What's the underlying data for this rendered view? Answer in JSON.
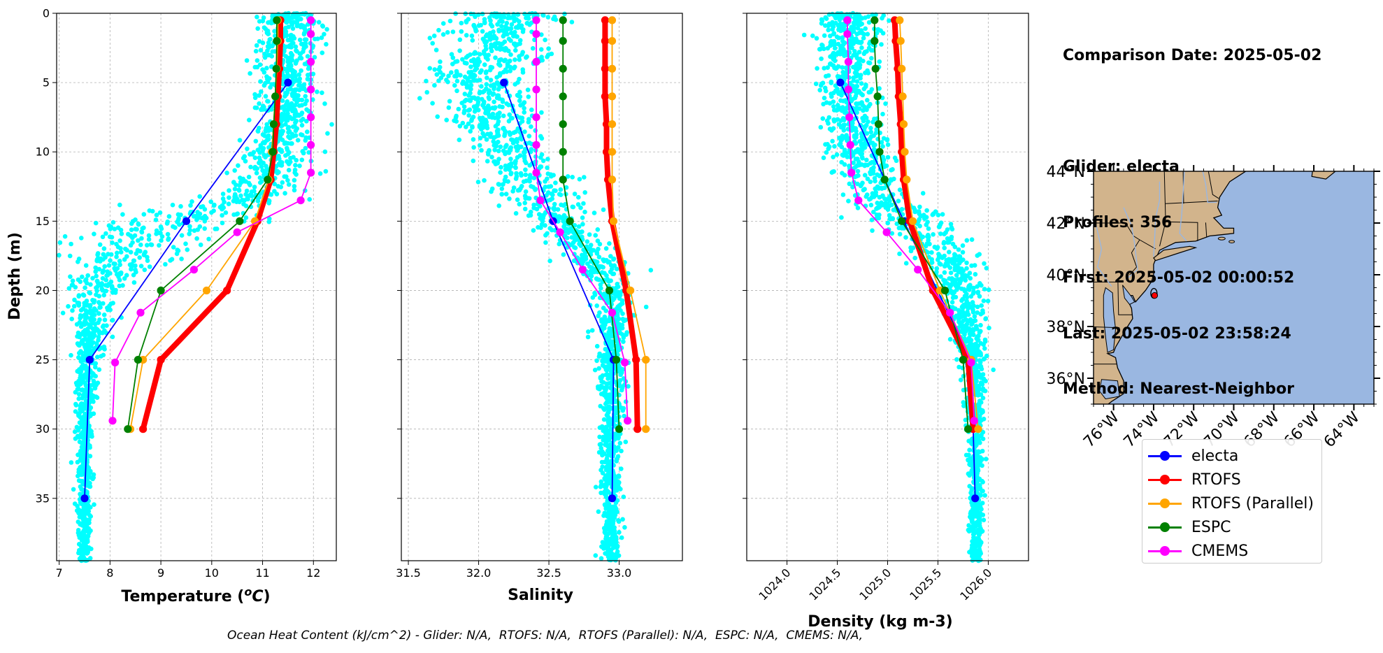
{
  "info": {
    "comparison_date": "Comparison Date: 2025-05-02",
    "glider": "Glider: electa",
    "profiles": "Profiles: 356",
    "first": "First: 2025-05-02 00:00:52",
    "last": "Last: 2025-05-02 23:58:24",
    "method": "Method: Nearest-Neighbor"
  },
  "footer": "Ocean Heat Content (kJ/cm^2) - Glider: N/A,  RTOFS: N/A,  RTOFS (Parallel): N/A,  ESPC: N/A,  CMEMS: N/A,",
  "legend": [
    {
      "label": "electa",
      "color": "#0000ff"
    },
    {
      "label": "RTOFS",
      "color": "#ff0000"
    },
    {
      "label": "RTOFS (Parallel)",
      "color": "#ffa500"
    },
    {
      "label": "ESPC",
      "color": "#008000"
    },
    {
      "label": "CMEMS",
      "color": "#ff00ff"
    }
  ],
  "chart_data": [
    {
      "type": "line",
      "title": "",
      "xlabel": "Temperature (°C)",
      "ylabel": "Depth (m)",
      "xlim": [
        6.95,
        12.45
      ],
      "ylim": [
        39.5,
        0
      ],
      "xticks": [
        7,
        8,
        9,
        10,
        11,
        12
      ],
      "yticks": [
        0,
        5,
        10,
        15,
        20,
        25,
        30,
        35
      ],
      "grid": true,
      "scatter_color": "#00ffff",
      "series": [
        {
          "name": "electa",
          "color": "#0000ff",
          "width": 1.8,
          "x": [
            11.5,
            9.5,
            7.6,
            7.5
          ],
          "depth": [
            5,
            15,
            25,
            35
          ]
        },
        {
          "name": "RTOFS",
          "color": "#ff0000",
          "width": 8,
          "x": [
            11.35,
            11.35,
            11.33,
            11.3,
            11.27,
            11.22,
            11.16,
            10.9,
            10.3,
            9.0,
            8.65
          ],
          "depth": [
            0.5,
            2,
            4,
            6,
            8,
            10,
            12,
            15,
            20,
            25,
            30
          ]
        },
        {
          "name": "RTOFS (Parallel)",
          "color": "#ffa500",
          "width": 1.8,
          "x": [
            11.3,
            11.3,
            11.28,
            11.25,
            11.22,
            11.18,
            11.12,
            10.85,
            9.9,
            8.65,
            8.4
          ],
          "depth": [
            0.5,
            2,
            4,
            6,
            8,
            10,
            12,
            15,
            20,
            25,
            30
          ]
        },
        {
          "name": "ESPC",
          "color": "#008000",
          "width": 1.8,
          "x": [
            11.28,
            11.28,
            11.27,
            11.25,
            11.22,
            11.2,
            11.1,
            10.55,
            9.0,
            8.55,
            8.35
          ],
          "depth": [
            0.5,
            2,
            4,
            6,
            8,
            10,
            12,
            15,
            20,
            25,
            30
          ]
        },
        {
          "name": "CMEMS",
          "color": "#ff00ff",
          "width": 1.8,
          "x": [
            11.95,
            11.95,
            11.95,
            11.95,
            11.95,
            11.95,
            11.95,
            11.75,
            10.5,
            9.65,
            8.6,
            8.1,
            8.05
          ],
          "depth": [
            0.5,
            1.5,
            3.5,
            5.5,
            7.5,
            9.5,
            11.5,
            13.5,
            15.8,
            18.5,
            21.6,
            25.2,
            29.4
          ]
        }
      ]
    },
    {
      "type": "line",
      "title": "",
      "xlabel": "Salinity",
      "ylabel": "",
      "xlim": [
        31.45,
        33.45
      ],
      "ylim": [
        39.5,
        0
      ],
      "xticks": [
        31.5,
        32.0,
        32.5,
        33.0
      ],
      "yticks": [
        0,
        5,
        10,
        15,
        20,
        25,
        30,
        35
      ],
      "grid": true,
      "scatter_color": "#00ffff",
      "series": [
        {
          "name": "electa",
          "color": "#0000ff",
          "width": 1.8,
          "x": [
            32.18,
            32.53,
            32.96,
            32.95
          ],
          "depth": [
            5,
            15,
            25,
            35
          ]
        },
        {
          "name": "RTOFS",
          "color": "#ff0000",
          "width": 8,
          "x": [
            32.9,
            32.9,
            32.9,
            32.9,
            32.91,
            32.91,
            32.92,
            32.95,
            33.05,
            33.12,
            33.13
          ],
          "depth": [
            0.5,
            2,
            4,
            6,
            8,
            10,
            12,
            15,
            20,
            25,
            30
          ]
        },
        {
          "name": "RTOFS (Parallel)",
          "color": "#ffa500",
          "width": 1.8,
          "x": [
            32.95,
            32.95,
            32.95,
            32.95,
            32.95,
            32.95,
            32.95,
            32.96,
            33.08,
            33.19,
            33.19
          ],
          "depth": [
            0.5,
            2,
            4,
            6,
            8,
            10,
            12,
            15,
            20,
            25,
            30
          ]
        },
        {
          "name": "ESPC",
          "color": "#008000",
          "width": 1.8,
          "x": [
            32.6,
            32.6,
            32.6,
            32.6,
            32.6,
            32.6,
            32.6,
            32.65,
            32.93,
            32.98,
            33.0
          ],
          "depth": [
            0.5,
            2,
            4,
            6,
            8,
            10,
            12,
            15,
            20,
            25,
            30
          ]
        },
        {
          "name": "CMEMS",
          "color": "#ff00ff",
          "width": 1.8,
          "x": [
            32.41,
            32.41,
            32.41,
            32.41,
            32.41,
            32.41,
            32.41,
            32.44,
            32.58,
            32.74,
            32.95,
            33.04,
            33.06
          ],
          "depth": [
            0.5,
            1.5,
            3.5,
            5.5,
            7.5,
            9.5,
            11.5,
            13.5,
            15.8,
            18.5,
            21.6,
            25.2,
            29.4
          ]
        }
      ]
    },
    {
      "type": "line",
      "title": "",
      "xlabel": "Density (kg m-3)",
      "ylabel": "",
      "xlim": [
        1023.6,
        1026.4
      ],
      "ylim": [
        39.5,
        0
      ],
      "xticks": [
        1024.0,
        1024.5,
        1025.0,
        1025.5,
        1026.0
      ],
      "yticks": [
        0,
        5,
        10,
        15,
        20,
        25,
        30,
        35
      ],
      "grid": true,
      "scatter_color": "#00ffff",
      "series": [
        {
          "name": "electa",
          "color": "#0000ff",
          "width": 1.8,
          "x": [
            1024.53,
            1025.16,
            1025.83,
            1025.87
          ],
          "depth": [
            5,
            15,
            25,
            35
          ]
        },
        {
          "name": "RTOFS",
          "color": "#ff0000",
          "width": 8,
          "x": [
            1025.07,
            1025.08,
            1025.1,
            1025.11,
            1025.13,
            1025.14,
            1025.16,
            1025.22,
            1025.45,
            1025.8,
            1025.85
          ],
          "depth": [
            0.5,
            2,
            4,
            6,
            8,
            10,
            12,
            15,
            20,
            25,
            30
          ]
        },
        {
          "name": "RTOFS (Parallel)",
          "color": "#ffa500",
          "width": 1.8,
          "x": [
            1025.12,
            1025.13,
            1025.14,
            1025.15,
            1025.16,
            1025.17,
            1025.19,
            1025.25,
            1025.52,
            1025.83,
            1025.9
          ],
          "depth": [
            0.5,
            2,
            4,
            6,
            8,
            10,
            12,
            15,
            20,
            25,
            30
          ]
        },
        {
          "name": "ESPC",
          "color": "#008000",
          "width": 1.8,
          "x": [
            1024.87,
            1024.87,
            1024.88,
            1024.9,
            1024.91,
            1024.92,
            1024.97,
            1025.14,
            1025.57,
            1025.75,
            1025.8
          ],
          "depth": [
            0.5,
            2,
            4,
            6,
            8,
            10,
            12,
            15,
            20,
            25,
            30
          ]
        },
        {
          "name": "CMEMS",
          "color": "#ff00ff",
          "width": 1.8,
          "x": [
            1024.6,
            1024.6,
            1024.61,
            1024.61,
            1024.62,
            1024.63,
            1024.64,
            1024.71,
            1024.99,
            1025.3,
            1025.62,
            1025.83,
            1025.86
          ],
          "depth": [
            0.5,
            1.5,
            3.5,
            5.5,
            7.5,
            9.5,
            11.5,
            13.5,
            15.8,
            18.5,
            21.6,
            25.2,
            29.4
          ]
        }
      ]
    },
    {
      "type": "map",
      "xticks_labels": [
        "76°W",
        "74°W",
        "72°W",
        "70°W",
        "68°W",
        "66°W",
        "64°W"
      ],
      "yticks_labels": [
        "44°N",
        "42°N",
        "40°N",
        "38°N",
        "36°N"
      ],
      "lon_range": [
        -77,
        -63
      ],
      "lat_range": [
        35,
        44
      ],
      "land_color": "#d2b48c",
      "ocean_color": "#9ab7e1",
      "glider_position": {
        "lon": -73.95,
        "lat": 39.2
      }
    }
  ]
}
